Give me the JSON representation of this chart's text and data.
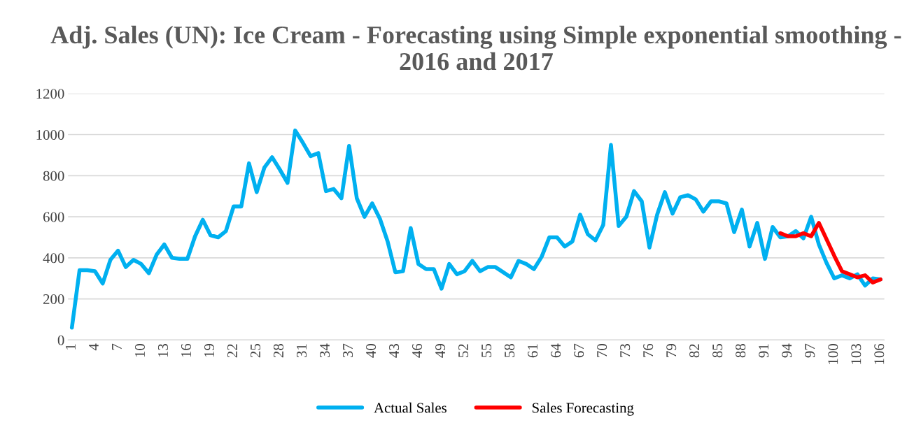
{
  "chart_data": {
    "type": "line",
    "title": "Adj. Sales (UN): Ice Cream - Forecasting using Simple exponential smoothing - 2016 and 2017",
    "categories": [
      "1",
      null,
      null,
      "4",
      null,
      null,
      "7",
      null,
      null,
      "10",
      null,
      null,
      "13",
      null,
      null,
      "16",
      null,
      null,
      "19",
      null,
      null,
      "22",
      null,
      null,
      "25",
      null,
      null,
      "28",
      null,
      null,
      "31",
      null,
      null,
      "34",
      null,
      null,
      "37",
      null,
      null,
      "40",
      null,
      null,
      "43",
      null,
      null,
      "46",
      null,
      null,
      "49",
      null,
      null,
      "52",
      null,
      null,
      "55",
      null,
      null,
      "58",
      null,
      null,
      "61",
      null,
      null,
      "64",
      null,
      null,
      "67",
      null,
      null,
      "70",
      null,
      null,
      "73",
      null,
      null,
      "76",
      null,
      null,
      "79",
      null,
      null,
      "82",
      null,
      null,
      "85",
      null,
      null,
      "88",
      null,
      null,
      "91",
      null,
      null,
      "94",
      null,
      null,
      "97",
      null,
      null,
      "100",
      null,
      null,
      "103",
      null,
      null,
      "106"
    ],
    "series": [
      {
        "name": "Actual Sales",
        "color": "#00b0f0",
        "values": [
          60,
          340,
          340,
          335,
          275,
          390,
          435,
          355,
          390,
          370,
          325,
          415,
          465,
          400,
          395,
          395,
          505,
          585,
          510,
          500,
          530,
          650,
          650,
          860,
          720,
          840,
          890,
          830,
          765,
          1020,
          960,
          895,
          910,
          725,
          735,
          690,
          945,
          690,
          600,
          665,
          590,
          480,
          330,
          335,
          545,
          370,
          345,
          345,
          250,
          370,
          320,
          335,
          385,
          335,
          355,
          355,
          330,
          305,
          385,
          370,
          345,
          405,
          500,
          500,
          455,
          480,
          610,
          515,
          485,
          560,
          950,
          555,
          600,
          725,
          675,
          450,
          610,
          720,
          615,
          695,
          705,
          685,
          625,
          675,
          675,
          665,
          525,
          635,
          455,
          570,
          395,
          550,
          500,
          505,
          530,
          495,
          600,
          465,
          375,
          300,
          315,
          300,
          320,
          265,
          300,
          295
        ]
      },
      {
        "name": "Sales Forecasting",
        "color": "#ff0000",
        "values": [
          null,
          null,
          null,
          null,
          null,
          null,
          null,
          null,
          null,
          null,
          null,
          null,
          null,
          null,
          null,
          null,
          null,
          null,
          null,
          null,
          null,
          null,
          null,
          null,
          null,
          null,
          null,
          null,
          null,
          null,
          null,
          null,
          null,
          null,
          null,
          null,
          null,
          null,
          null,
          null,
          null,
          null,
          null,
          null,
          null,
          null,
          null,
          null,
          null,
          null,
          null,
          null,
          null,
          null,
          null,
          null,
          null,
          null,
          null,
          null,
          null,
          null,
          null,
          null,
          null,
          null,
          null,
          null,
          null,
          null,
          null,
          null,
          null,
          null,
          null,
          null,
          null,
          null,
          null,
          null,
          null,
          null,
          null,
          null,
          null,
          null,
          null,
          null,
          null,
          null,
          null,
          null,
          520,
          505,
          505,
          520,
          505,
          570,
          490,
          410,
          335,
          320,
          305,
          315,
          280,
          295
        ]
      }
    ],
    "ylim": [
      0,
      1200
    ],
    "yticks": [
      0,
      200,
      400,
      600,
      800,
      1000,
      1200
    ],
    "grid": "y",
    "legend": "bottom",
    "line_style": "solid",
    "marker": "none"
  }
}
